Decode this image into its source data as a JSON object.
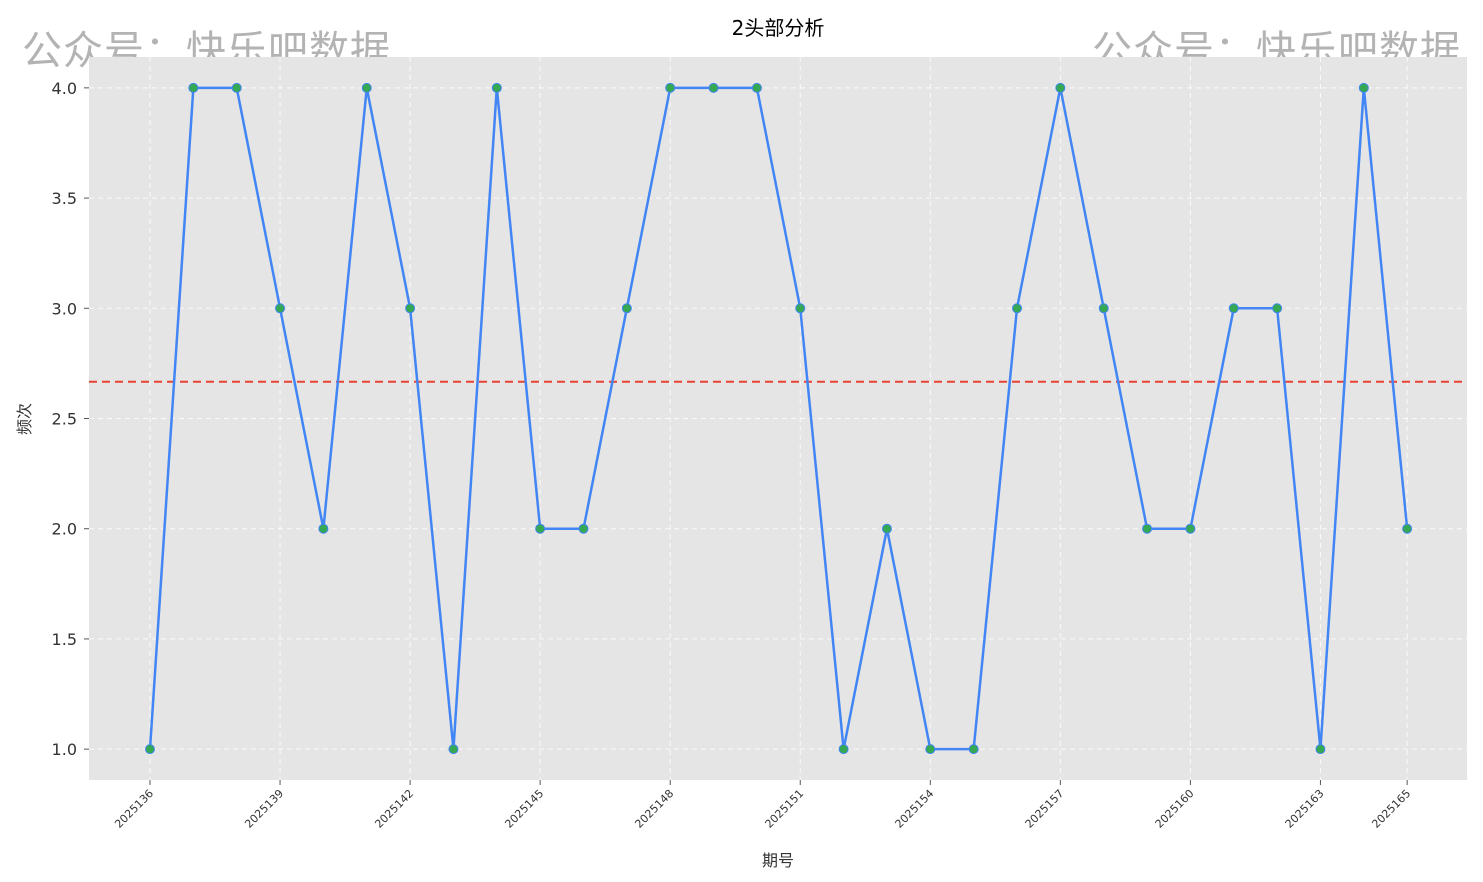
{
  "watermark": "公众号：快乐吧数据",
  "chart_data": {
    "type": "line",
    "title": "2头部分析",
    "xlabel": "期号",
    "ylabel": "频次",
    "x": [
      "2025136",
      "2025137",
      "2025138",
      "2025139",
      "2025140",
      "2025141",
      "2025142",
      "2025143",
      "2025144",
      "2025145",
      "2025146",
      "2025147",
      "2025148",
      "2025149",
      "2025150",
      "2025151",
      "2025152",
      "2025153",
      "2025154",
      "2025155",
      "2025156",
      "2025157",
      "2025158",
      "2025159",
      "2025160",
      "2025161",
      "2025162",
      "2025163",
      "2025164",
      "2025165"
    ],
    "xticks": [
      "2025136",
      "2025139",
      "2025142",
      "2025145",
      "2025148",
      "2025151",
      "2025154",
      "2025157",
      "2025160",
      "2025163",
      "2025165"
    ],
    "values": [
      1,
      4,
      4,
      3,
      2,
      4,
      3,
      1,
      4,
      2,
      2,
      3,
      4,
      4,
      4,
      3,
      1,
      2,
      1,
      1,
      3,
      4,
      3,
      2,
      2,
      3,
      3,
      1,
      4,
      2
    ],
    "yticks": [
      1.0,
      1.5,
      2.0,
      2.5,
      3.0,
      3.5,
      4.0
    ],
    "ylim": [
      0.86,
      4.14
    ],
    "mean": 2.6667,
    "grid": true,
    "colors": {
      "line": "#4285f4",
      "marker": "#34a853",
      "mean_line": "#ea4335",
      "plot_bg": "#e5e5e5",
      "grid": "#ffffff"
    }
  }
}
